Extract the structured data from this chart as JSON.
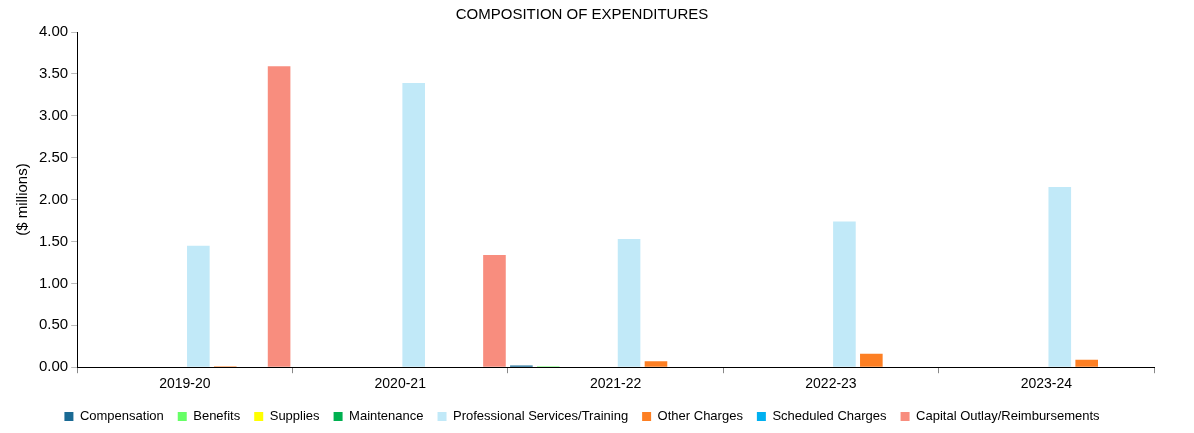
{
  "chart_data": {
    "type": "bar",
    "title": "COMPOSITION OF EXPENDITURES",
    "ylabel": "($ millions)",
    "categories": [
      "2019-20",
      "2020-21",
      "2021-22",
      "2022-23",
      "2023-24"
    ],
    "series": [
      {
        "name": "Compensation",
        "color": "#1a6a94",
        "values": [
          0,
          0,
          0.02,
          0,
          0
        ]
      },
      {
        "name": "Benefits",
        "color": "#66ff66",
        "values": [
          0,
          0,
          0.01,
          0,
          0
        ]
      },
      {
        "name": "Supplies",
        "color": "#ffff00",
        "values": [
          0,
          0,
          0,
          0,
          0
        ]
      },
      {
        "name": "Maintenance",
        "color": "#00b050",
        "values": [
          0,
          0,
          0,
          0,
          0
        ]
      },
      {
        "name": "Professional Services/Training",
        "color": "#c1e9f8",
        "values": [
          1.45,
          3.39,
          1.53,
          1.74,
          2.15
        ]
      },
      {
        "name": "Other Charges",
        "color": "#fd7f23",
        "values": [
          0.01,
          0,
          0.07,
          0.16,
          0.09
        ]
      },
      {
        "name": "Scheduled Charges",
        "color": "#00b0f0",
        "values": [
          0,
          0,
          0,
          0,
          0
        ]
      },
      {
        "name": "Capital Outlay/Reimbursements",
        "color": "#f88d7e",
        "values": [
          3.59,
          1.34,
          0,
          0,
          0
        ]
      }
    ],
    "ylim": [
      0,
      4
    ],
    "yticks": [
      {
        "value": 0,
        "label": "0.00"
      },
      {
        "value": 0.5,
        "label": "0.50"
      },
      {
        "value": 1,
        "label": "1.00"
      },
      {
        "value": 1.5,
        "label": "1.50"
      },
      {
        "value": 2,
        "label": "2.00"
      },
      {
        "value": 2.5,
        "label": "2.50"
      },
      {
        "value": 3,
        "label": "3.00"
      },
      {
        "value": 3.5,
        "label": "3.50"
      },
      {
        "value": 4,
        "label": "4.00"
      }
    ],
    "grid": false,
    "legend": "bottom"
  }
}
